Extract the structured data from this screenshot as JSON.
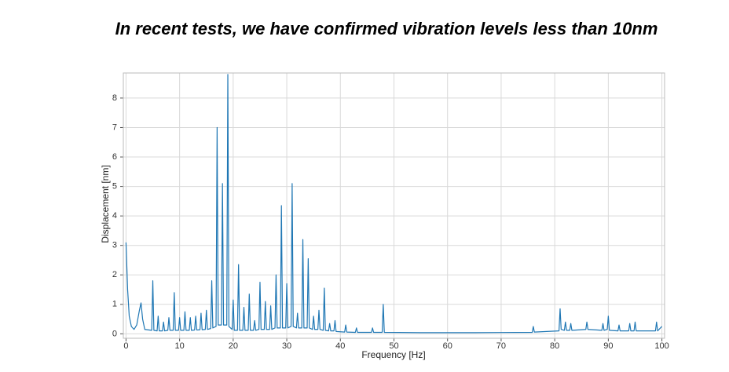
{
  "chart_data": {
    "type": "line",
    "title": "In recent tests, we have confirmed vibration levels less than 10nm",
    "x_label": "Frequency [Hz]",
    "y_label": "Displacement [nm]",
    "xlim": [
      -0.5,
      100.5
    ],
    "ylim": [
      -0.15,
      8.85
    ],
    "xticks": [
      0,
      10,
      20,
      30,
      40,
      50,
      60,
      70,
      80,
      90,
      100
    ],
    "yticks": [
      0,
      1,
      2,
      3,
      4,
      5,
      6,
      7,
      8
    ],
    "grid": true,
    "x": [
      0,
      0.3,
      0.6,
      1,
      1.5,
      2,
      2.5,
      2.8,
      3.1,
      3.5,
      4.8,
      5,
      5.2,
      5.8,
      6,
      6.2,
      6.8,
      7,
      7.2,
      7.8,
      8,
      8.2,
      8.8,
      9,
      9.2,
      9.8,
      10,
      10.2,
      10.8,
      11,
      11.2,
      11.8,
      12,
      12.2,
      12.8,
      13,
      13.2,
      13.8,
      14,
      14.2,
      14.8,
      15,
      15.2,
      15.8,
      16,
      16.2,
      16.8,
      17,
      17.2,
      17.8,
      18,
      18.2,
      18.8,
      19,
      19.2,
      19.8,
      20,
      20.2,
      20.8,
      21,
      21.2,
      21.8,
      22,
      22.2,
      22.8,
      23,
      23.2,
      23.8,
      24,
      24.2,
      24.8,
      25,
      25.2,
      25.8,
      26,
      26.2,
      26.8,
      27,
      27.2,
      27.8,
      28,
      28.2,
      28.8,
      29,
      29.2,
      29.8,
      30,
      30.2,
      30.8,
      31,
      31.2,
      31.8,
      32,
      32.2,
      32.8,
      33,
      33.2,
      33.8,
      34,
      34.2,
      34.8,
      35,
      35.2,
      35.8,
      36,
      36.2,
      36.8,
      37,
      37.2,
      37.8,
      38,
      38.2,
      38.8,
      39,
      39.2,
      40.8,
      41,
      41.2,
      42.8,
      43,
      43.2,
      45.8,
      46,
      46.2,
      47.8,
      48,
      48.2,
      55,
      65,
      75.8,
      76,
      76.2,
      80.8,
      81,
      81.2,
      81.8,
      82,
      82.2,
      82.8,
      83,
      83.2,
      85.8,
      86,
      86.2,
      88.8,
      89,
      89.2,
      89.8,
      90,
      90.2,
      91.8,
      92,
      92.2,
      93.8,
      94,
      94.2,
      94.8,
      95,
      95.2,
      98.8,
      99,
      99.2,
      100
    ],
    "series": [
      {
        "color": "#1f77b4",
        "values": [
          3.1,
          1.5,
          0.6,
          0.25,
          0.15,
          0.3,
          0.8,
          1.05,
          0.5,
          0.15,
          0.12,
          1.8,
          0.12,
          0.1,
          0.6,
          0.1,
          0.1,
          0.4,
          0.1,
          0.12,
          0.55,
          0.12,
          0.12,
          1.4,
          0.12,
          0.12,
          0.55,
          0.12,
          0.12,
          0.75,
          0.12,
          0.12,
          0.55,
          0.12,
          0.13,
          0.6,
          0.13,
          0.14,
          0.7,
          0.14,
          0.15,
          0.8,
          0.15,
          0.18,
          1.8,
          0.2,
          0.25,
          7.0,
          0.3,
          0.3,
          5.1,
          0.3,
          0.3,
          8.8,
          0.25,
          0.15,
          1.15,
          0.12,
          0.12,
          2.35,
          0.12,
          0.12,
          0.9,
          0.12,
          0.12,
          1.35,
          0.12,
          0.12,
          0.45,
          0.12,
          0.15,
          1.75,
          0.15,
          0.15,
          1.1,
          0.15,
          0.15,
          0.95,
          0.15,
          0.2,
          2.0,
          0.2,
          0.2,
          4.35,
          0.2,
          0.2,
          1.7,
          0.2,
          0.25,
          5.1,
          0.25,
          0.2,
          0.7,
          0.2,
          0.2,
          3.2,
          0.2,
          0.2,
          2.55,
          0.2,
          0.15,
          0.6,
          0.15,
          0.15,
          0.8,
          0.15,
          0.12,
          1.55,
          0.12,
          0.1,
          0.35,
          0.1,
          0.1,
          0.45,
          0.08,
          0.06,
          0.3,
          0.06,
          0.05,
          0.2,
          0.05,
          0.05,
          0.2,
          0.05,
          0.05,
          1.0,
          0.05,
          0.04,
          0.04,
          0.05,
          0.25,
          0.06,
          0.1,
          0.85,
          0.15,
          0.12,
          0.4,
          0.12,
          0.12,
          0.35,
          0.12,
          0.15,
          0.4,
          0.15,
          0.12,
          0.35,
          0.12,
          0.15,
          0.6,
          0.12,
          0.1,
          0.3,
          0.1,
          0.1,
          0.35,
          0.1,
          0.1,
          0.4,
          0.1,
          0.1,
          0.4,
          0.1,
          0.25
        ]
      }
    ]
  }
}
